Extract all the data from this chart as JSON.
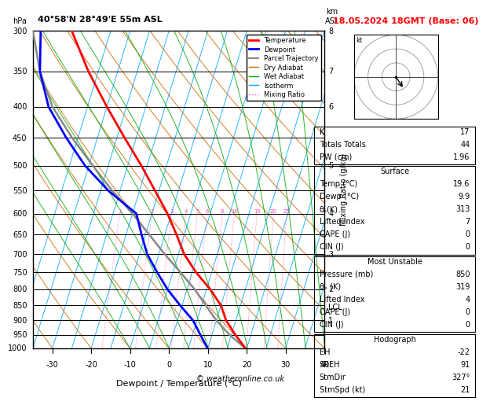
{
  "title_left": "40°58'N 28°49'E 55m ASL",
  "title_right": "18.05.2024 18GMT (Base: 06)",
  "hpa_label": "hPa",
  "km_label": "km\nASL",
  "xlabel": "Dewpoint / Temperature (°C)",
  "mixing_ratio_label": "Mixing Ratio (g/kg)",
  "pressure_levels": [
    300,
    350,
    400,
    450,
    500,
    550,
    600,
    650,
    700,
    750,
    800,
    850,
    900,
    950,
    1000
  ],
  "pressure_ticks": [
    300,
    350,
    400,
    450,
    500,
    550,
    600,
    650,
    700,
    750,
    800,
    850,
    900,
    950,
    1000
  ],
  "temp_range": [
    -35,
    40
  ],
  "temp_ticks": [
    -30,
    -20,
    -10,
    0,
    10,
    20,
    30,
    40
  ],
  "km_ticks": [
    1,
    2,
    3,
    4,
    5,
    6,
    7,
    8
  ],
  "km_pressures": [
    900,
    800,
    700,
    600,
    500,
    400,
    350,
    300
  ],
  "lcl_pressure": 855,
  "temp_profile": {
    "pressure": [
      1000,
      950,
      900,
      850,
      800,
      750,
      700,
      650,
      600,
      550,
      500,
      450,
      400,
      350,
      300
    ],
    "temperature": [
      19.6,
      16.0,
      12.5,
      10.0,
      6.0,
      1.0,
      -3.5,
      -7.0,
      -11.0,
      -16.0,
      -21.5,
      -28.0,
      -35.0,
      -42.5,
      -50.0
    ]
  },
  "dewpoint_profile": {
    "pressure": [
      1000,
      950,
      900,
      850,
      800,
      750,
      700,
      650,
      600,
      550,
      500,
      450,
      400,
      350,
      300
    ],
    "dewpoint": [
      9.9,
      7.0,
      4.0,
      -0.5,
      -5.0,
      -9.0,
      -13.0,
      -16.0,
      -19.0,
      -28.0,
      -36.0,
      -43.0,
      -50.0,
      -55.0,
      -58.0
    ]
  },
  "parcel_profile": {
    "pressure": [
      1000,
      950,
      900,
      855,
      800,
      750,
      700,
      650,
      600,
      550,
      500,
      450,
      400,
      350,
      300
    ],
    "temperature": [
      19.6,
      14.5,
      10.0,
      6.5,
      2.0,
      -3.0,
      -8.5,
      -14.0,
      -20.0,
      -27.0,
      -34.0,
      -41.5,
      -49.0,
      -55.0,
      -60.0
    ]
  },
  "temp_color": "#ff0000",
  "dewpoint_color": "#0000ff",
  "parcel_color": "#888888",
  "dry_adiabat_color": "#cc6600",
  "wet_adiabat_color": "#00aa00",
  "isotherm_color": "#00aaff",
  "mixing_ratio_color": "#ff44aa",
  "background_color": "#ffffff",
  "info_panel": {
    "K": 17,
    "Totals_Totals": 44,
    "PW_cm": 1.96,
    "Surface_Temp": 19.6,
    "Surface_Dewp": 9.9,
    "theta_e_K": 313,
    "Lifted_Index": 7,
    "CAPE_J": 0,
    "CIN_J": 0,
    "MU_Pressure_mb": 850,
    "MU_theta_e_K": 319,
    "MU_Lifted_Index": 4,
    "MU_CAPE_J": 0,
    "MU_CIN_J": 0,
    "EH": -22,
    "SREH": 91,
    "StmDir": 327,
    "StmSpd_kt": 21
  },
  "mixing_ratios": [
    1,
    2,
    3,
    4,
    5,
    6,
    8,
    10,
    15,
    20,
    25
  ],
  "copyright": "© weatheronline.co.uk"
}
